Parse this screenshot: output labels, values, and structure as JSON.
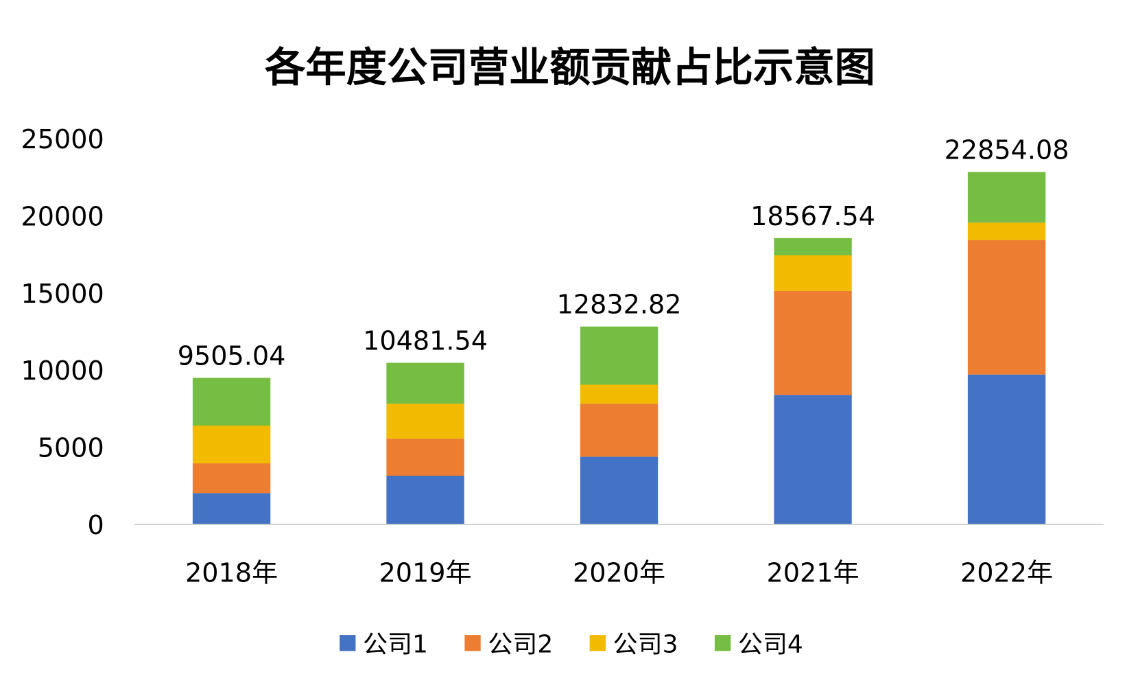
{
  "chart_data": {
    "type": "bar",
    "stacked": true,
    "title": "各年度公司营业额贡献占比示意图",
    "xlabel": "",
    "ylabel": "",
    "ylim": [
      0,
      25000
    ],
    "yticks": [
      0,
      5000,
      10000,
      15000,
      20000,
      25000
    ],
    "grid": false,
    "legend_position": "bottom",
    "categories": [
      "2018年",
      "2019年",
      "2020年",
      "2021年",
      "2022年"
    ],
    "series": [
      {
        "name": "公司1",
        "color": "#4472C4",
        "values": [
          2030,
          3160,
          4390,
          8400,
          9720
        ]
      },
      {
        "name": "公司2",
        "color": "#ED7D31",
        "values": [
          1930,
          2410,
          3440,
          6740,
          8720
        ]
      },
      {
        "name": "公司3",
        "color": "#F2BA00",
        "values": [
          2450,
          2260,
          1230,
          2310,
          1130
        ]
      },
      {
        "name": "公司4",
        "color": "#76BD43",
        "values": [
          3095.04,
          2651.54,
          3772.82,
          1117.54,
          3284.08
        ]
      }
    ],
    "totals": [
      "9505.04",
      "10481.54",
      "12832.82",
      "18567.54",
      "22854.08"
    ]
  }
}
